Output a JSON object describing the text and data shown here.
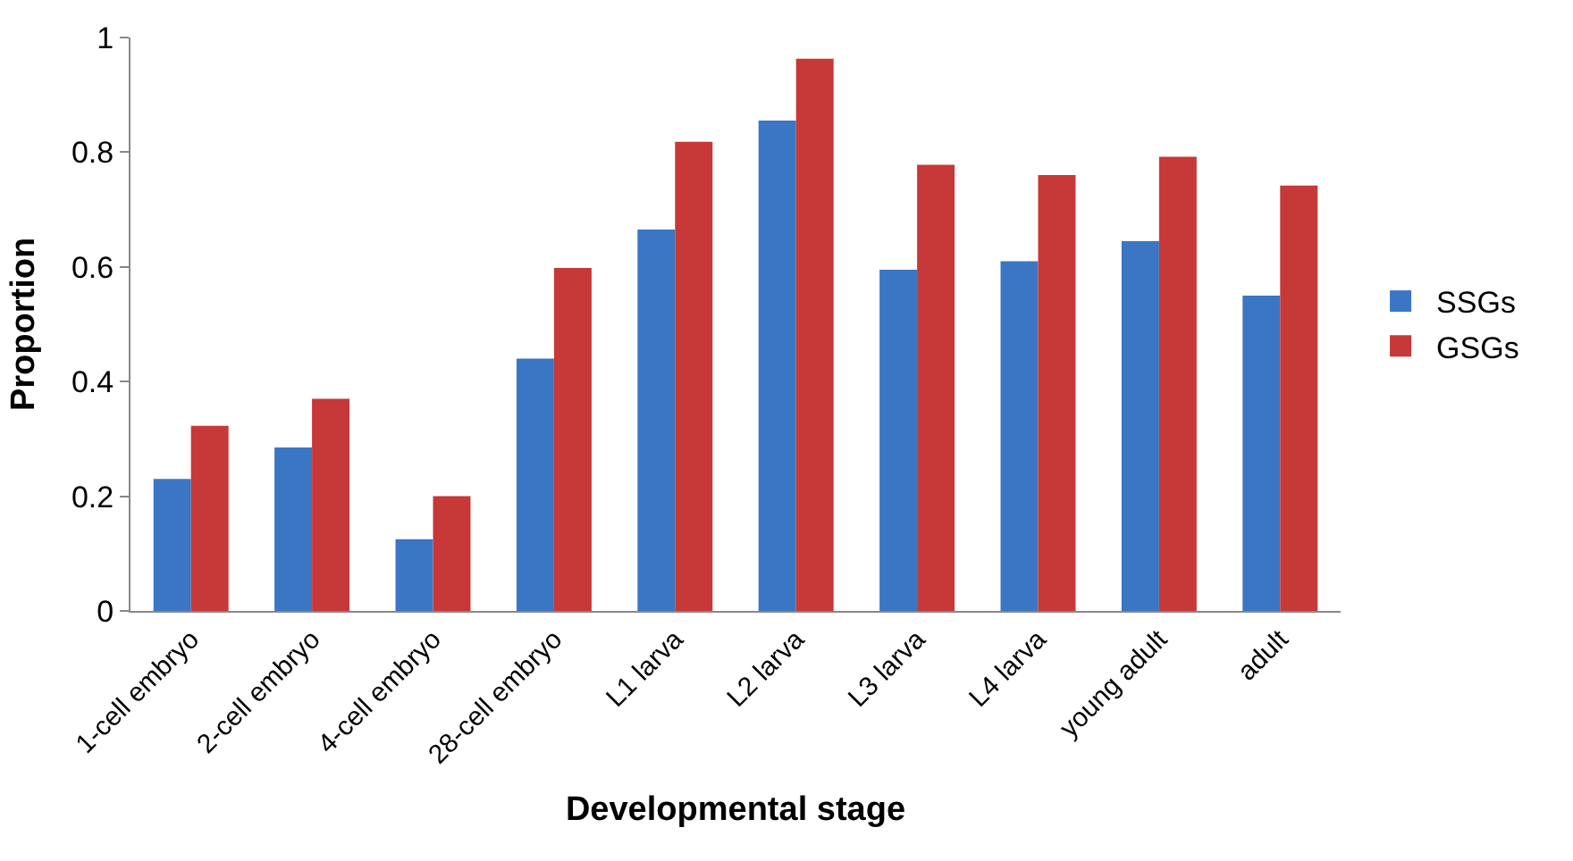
{
  "chart_data": {
    "type": "bar",
    "xlabel": "Developmental stage",
    "ylabel": "Proportion",
    "categories": [
      "1-cell embryo",
      "2-cell embryo",
      "4-cell embryo",
      "28-cell embryo",
      "L1 larva",
      "L2 larva",
      "L3 larva",
      "L4 larva",
      "young adult",
      "adult"
    ],
    "series": [
      {
        "name": "SSGs",
        "color": "#3a76c4",
        "values": [
          0.23,
          0.285,
          0.125,
          0.44,
          0.665,
          0.855,
          0.595,
          0.61,
          0.645,
          0.55
        ]
      },
      {
        "name": "GSGs",
        "color": "#c73838",
        "values": [
          0.323,
          0.37,
          0.2,
          0.598,
          0.818,
          0.963,
          0.778,
          0.76,
          0.792,
          0.742
        ]
      }
    ],
    "ylim": [
      0,
      1
    ],
    "yticks": [
      0,
      0.2,
      0.4,
      0.6,
      0.8,
      1
    ],
    "grid": false,
    "legend": "right"
  }
}
